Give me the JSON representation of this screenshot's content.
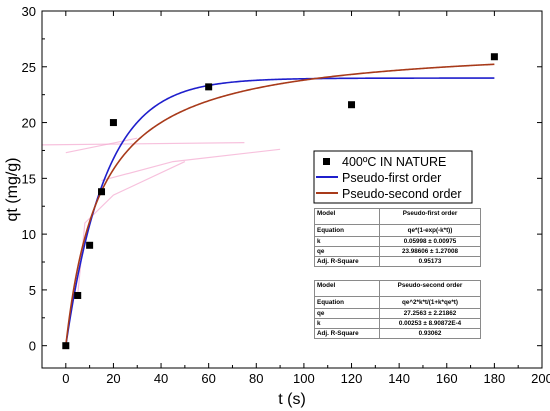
{
  "chart_data": {
    "type": "scatter",
    "xlabel": "t (s)",
    "ylabel": "qt (mg/g)",
    "xlim": [
      -10,
      200
    ],
    "ylim": [
      -2,
      30
    ],
    "x_ticks": [
      0,
      20,
      40,
      60,
      80,
      100,
      120,
      140,
      160,
      180,
      200
    ],
    "y_ticks": [
      0,
      5,
      10,
      15,
      20,
      25,
      30
    ],
    "legend_position": "center-right",
    "series": [
      {
        "name": "400ºC IN NATURE",
        "type": "scatter",
        "color": "#000000",
        "marker": "square",
        "x": [
          0,
          5,
          10,
          15,
          20,
          60,
          120,
          180
        ],
        "y": [
          0,
          4.5,
          9,
          13.8,
          20,
          23.2,
          21.6,
          25.9
        ]
      },
      {
        "name": "Pseudo-first order",
        "type": "line",
        "color": "#1f1fcc",
        "model": "pseudo-first-order",
        "qe": 23.98606,
        "k": 0.05998
      },
      {
        "name": "Pseudo-second order",
        "type": "line",
        "color": "#a83a1a",
        "model": "pseudo-second-order",
        "qe": 27.2563,
        "k": 0.00253
      }
    ],
    "fit_tables": [
      {
        "rows": [
          [
            "Model",
            "Pseudo-first order"
          ],
          [
            "Equation",
            "qe*(1-exp(-k*t))"
          ],
          [
            "k",
            "0.05998 ± 0.00975"
          ],
          [
            "qe",
            "23.98606 ± 1.27008"
          ],
          [
            "Adj. R-Square",
            "0.95173"
          ]
        ]
      },
      {
        "rows": [
          [
            "Model",
            "Pseudo-second order"
          ],
          [
            "Equation",
            "qe^2*k*t/(1+k*qe*t)"
          ],
          [
            "qe",
            "27.2563 ± 2.21862"
          ],
          [
            "k",
            "0.00253 ± 8.90872E-4"
          ],
          [
            "Adj. R-Square",
            "0.93062"
          ]
        ]
      }
    ]
  }
}
